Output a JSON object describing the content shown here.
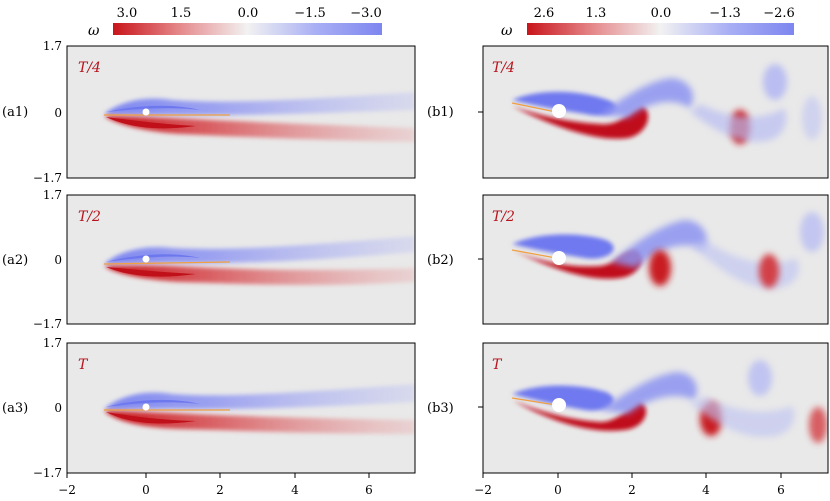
{
  "colorbars": [
    {
      "symbol": "ω",
      "ticks": [
        "3.0",
        "1.5",
        "0.0",
        "−1.5",
        "−3.0"
      ]
    },
    {
      "symbol": "ω",
      "ticks": [
        "2.6",
        "1.3",
        "0.0",
        "−1.3",
        "−2.6"
      ]
    }
  ],
  "axes": {
    "y_ticks": [
      "1.7",
      "0",
      "−1.7"
    ],
    "x_ticks": [
      "−2",
      "0",
      "2",
      "4",
      "6"
    ]
  },
  "panels": [
    {
      "label": "(a1)",
      "phase": "T/4"
    },
    {
      "label": "(a2)",
      "phase": "T/2"
    },
    {
      "label": "(a3)",
      "phase": "T"
    },
    {
      "label": "(b1)",
      "phase": "T/4"
    },
    {
      "label": "(b2)",
      "phase": "T/2"
    },
    {
      "label": "(b3)",
      "phase": "T"
    }
  ],
  "colors": {
    "positive": "#cc1218",
    "negative": "#7f86f2",
    "background": "#e9e9e9",
    "phase_text": "#b8141c"
  }
}
